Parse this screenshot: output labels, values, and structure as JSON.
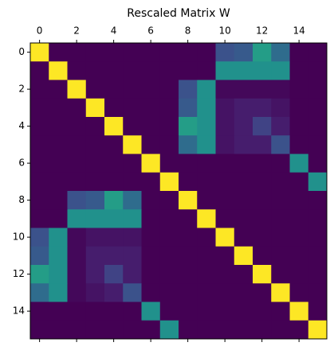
{
  "chart_data": {
    "type": "heatmap",
    "title": "Rescaled Matrix W",
    "colormap": "viridis",
    "xlim": [
      -0.5,
      15.5
    ],
    "ylim": [
      15.5,
      -0.5
    ],
    "xticks": [
      0,
      2,
      4,
      6,
      8,
      10,
      12,
      14
    ],
    "yticks": [
      0,
      2,
      4,
      6,
      8,
      10,
      12,
      14
    ],
    "z": [
      [
        1,
        0,
        0,
        0,
        0,
        0,
        0,
        0,
        0,
        0,
        0.25,
        0.28,
        0.55,
        0.35,
        0,
        0
      ],
      [
        0,
        1,
        0,
        0,
        0,
        0,
        0,
        0,
        0,
        0,
        0.5,
        0.5,
        0.5,
        0.5,
        0,
        0
      ],
      [
        0,
        0,
        1,
        0,
        0,
        0,
        0,
        0,
        0.25,
        0.5,
        0.02,
        0.02,
        0.02,
        0.02,
        0,
        0
      ],
      [
        0,
        0,
        0,
        1,
        0,
        0,
        0,
        0,
        0.28,
        0.5,
        0.05,
        0.08,
        0.08,
        0.05,
        0,
        0
      ],
      [
        0,
        0,
        0,
        0,
        1,
        0,
        0,
        0,
        0.55,
        0.5,
        0.05,
        0.08,
        0.2,
        0.08,
        0,
        0
      ],
      [
        0,
        0,
        0,
        0,
        0,
        1,
        0,
        0,
        0.35,
        0.5,
        0.05,
        0.08,
        0.08,
        0.25,
        0,
        0
      ],
      [
        0,
        0,
        0,
        0,
        0,
        0,
        1,
        0,
        0,
        0,
        0,
        0,
        0,
        0,
        0.5,
        0
      ],
      [
        0,
        0,
        0,
        0,
        0,
        0,
        0,
        1,
        0,
        0,
        0,
        0,
        0,
        0,
        0,
        0.5
      ],
      [
        0,
        0,
        0.25,
        0.28,
        0.55,
        0.35,
        0,
        0,
        1,
        0,
        0,
        0,
        0,
        0,
        0,
        0
      ],
      [
        0,
        0,
        0.5,
        0.5,
        0.5,
        0.5,
        0,
        0,
        0,
        1,
        0,
        0,
        0,
        0,
        0,
        0
      ],
      [
        0.25,
        0.5,
        0.02,
        0.05,
        0.05,
        0.05,
        0,
        0,
        0,
        0,
        1,
        0,
        0,
        0,
        0,
        0
      ],
      [
        0.28,
        0.5,
        0.02,
        0.08,
        0.08,
        0.08,
        0,
        0,
        0,
        0,
        0,
        1,
        0,
        0,
        0,
        0
      ],
      [
        0.55,
        0.5,
        0.02,
        0.08,
        0.2,
        0.08,
        0,
        0,
        0,
        0,
        0,
        0,
        1,
        0,
        0,
        0
      ],
      [
        0.35,
        0.5,
        0.02,
        0.05,
        0.08,
        0.25,
        0,
        0,
        0,
        0,
        0,
        0,
        0,
        1,
        0,
        0
      ],
      [
        0,
        0,
        0,
        0,
        0,
        0,
        0.5,
        0,
        0,
        0,
        0,
        0,
        0,
        0,
        1,
        0
      ],
      [
        0,
        0,
        0,
        0,
        0,
        0,
        0,
        0.5,
        0,
        0,
        0,
        0,
        0,
        0,
        0,
        1
      ]
    ]
  }
}
